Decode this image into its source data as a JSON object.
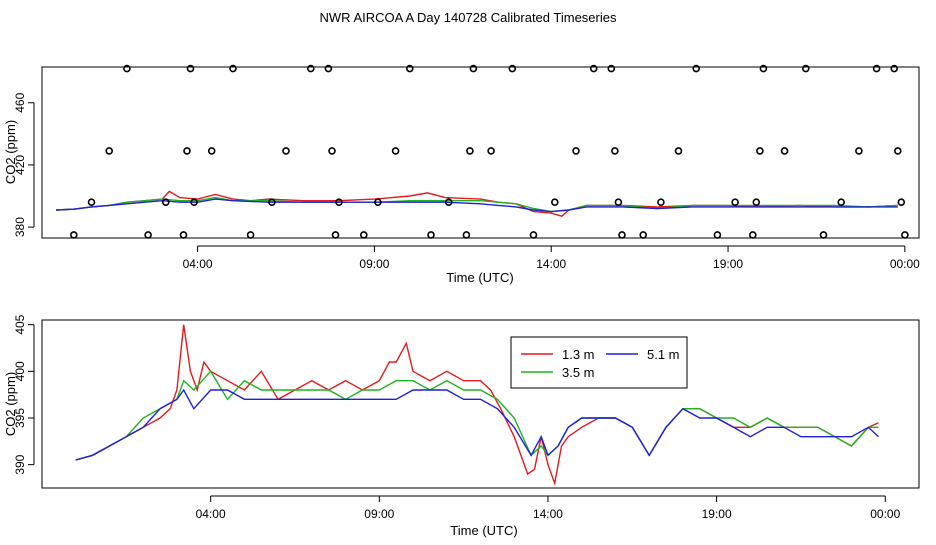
{
  "title": "NWR AIRCOA A  Day 140728  Calibrated Timeseries",
  "colors": {
    "red": "#e41a1c",
    "green": "#1fb41f",
    "blue": "#1f1fe0"
  },
  "chart_data": [
    {
      "type": "scatter",
      "title": "",
      "xlabel": "Time (UTC)",
      "ylabel": "CO2 (ppm)",
      "x_ticks": [
        "04:00",
        "09:00",
        "14:00",
        "19:00",
        "00:00"
      ],
      "x_tick_hours": [
        4,
        9,
        14,
        19,
        24
      ],
      "y_ticks": [
        380,
        420,
        460
      ],
      "xlim": [
        -0.4,
        24.4
      ],
      "ylim": [
        373,
        483
      ],
      "lines": [
        {
          "color": "red",
          "x": [
            0,
            0.5,
            1,
            1.5,
            2,
            2.5,
            3,
            3.2,
            3.5,
            4,
            4.5,
            5,
            5.5,
            6,
            7,
            8,
            9,
            9.5,
            10,
            10.5,
            11,
            12,
            12.5,
            13,
            13.5,
            14,
            14.3,
            14.5,
            15,
            16,
            17,
            18,
            19,
            20,
            21,
            22,
            23,
            23.8
          ],
          "y": [
            391,
            391.5,
            393,
            394,
            396,
            397,
            398,
            403,
            399,
            398,
            401,
            398,
            397,
            398,
            397,
            397,
            398,
            399,
            400,
            402,
            399,
            398,
            396,
            395,
            390,
            389,
            387,
            391,
            394,
            394,
            393,
            394,
            394,
            393,
            394,
            393,
            393,
            394
          ]
        },
        {
          "color": "green",
          "x": [
            0,
            0.5,
            1,
            1.5,
            2,
            2.5,
            3,
            3.5,
            4,
            4.5,
            5,
            6,
            7,
            8,
            9,
            10,
            11,
            12,
            12.5,
            13,
            13.5,
            14,
            14.5,
            15,
            16,
            17,
            18,
            19,
            20,
            21,
            22,
            23,
            23.8
          ],
          "y": [
            391,
            391.5,
            393,
            394,
            396,
            397,
            398,
            397,
            397,
            399,
            397,
            397,
            396,
            396,
            396,
            397,
            397,
            397,
            396,
            395,
            392,
            390,
            391,
            394,
            394,
            392,
            394,
            394,
            394,
            394,
            394,
            393,
            394
          ]
        },
        {
          "color": "blue",
          "x": [
            0,
            0.5,
            1,
            1.5,
            2,
            2.5,
            3,
            3.5,
            4,
            4.5,
            5,
            6,
            7,
            8,
            9,
            10,
            11,
            12,
            12.5,
            13,
            13.5,
            14,
            14.5,
            15,
            16,
            17,
            18,
            19,
            20,
            21,
            22,
            23,
            23.8
          ],
          "y": [
            391,
            391.5,
            393,
            394,
            395,
            396,
            397,
            396,
            396,
            398,
            397,
            396,
            396,
            396,
            396,
            396,
            396,
            395,
            394,
            393,
            391,
            390,
            391,
            393,
            393,
            392,
            393,
            393,
            393,
            393,
            393,
            393,
            393
          ]
        }
      ],
      "points": [
        {
          "x": 0.5,
          "y": 375
        },
        {
          "x": 1.0,
          "y": 396
        },
        {
          "x": 1.5,
          "y": 429
        },
        {
          "x": 2.0,
          "y": 482
        },
        {
          "x": 2.6,
          "y": 375
        },
        {
          "x": 3.1,
          "y": 396
        },
        {
          "x": 3.6,
          "y": 375
        },
        {
          "x": 3.7,
          "y": 429
        },
        {
          "x": 3.8,
          "y": 482
        },
        {
          "x": 3.9,
          "y": 396
        },
        {
          "x": 4.4,
          "y": 429
        },
        {
          "x": 5.0,
          "y": 482
        },
        {
          "x": 5.5,
          "y": 375
        },
        {
          "x": 6.1,
          "y": 396
        },
        {
          "x": 6.5,
          "y": 429
        },
        {
          "x": 7.2,
          "y": 482
        },
        {
          "x": 7.7,
          "y": 482
        },
        {
          "x": 7.8,
          "y": 429
        },
        {
          "x": 7.9,
          "y": 375
        },
        {
          "x": 8.0,
          "y": 396
        },
        {
          "x": 8.7,
          "y": 375
        },
        {
          "x": 9.1,
          "y": 396
        },
        {
          "x": 9.6,
          "y": 429
        },
        {
          "x": 10.0,
          "y": 482
        },
        {
          "x": 10.6,
          "y": 375
        },
        {
          "x": 11.1,
          "y": 396
        },
        {
          "x": 11.6,
          "y": 375
        },
        {
          "x": 11.7,
          "y": 429
        },
        {
          "x": 11.8,
          "y": 482
        },
        {
          "x": 12.3,
          "y": 429
        },
        {
          "x": 12.9,
          "y": 482
        },
        {
          "x": 13.5,
          "y": 375
        },
        {
          "x": 14.1,
          "y": 396
        },
        {
          "x": 14.7,
          "y": 429
        },
        {
          "x": 15.2,
          "y": 482
        },
        {
          "x": 15.7,
          "y": 482
        },
        {
          "x": 15.8,
          "y": 429
        },
        {
          "x": 15.9,
          "y": 396
        },
        {
          "x": 16.0,
          "y": 375
        },
        {
          "x": 16.6,
          "y": 375
        },
        {
          "x": 17.1,
          "y": 396
        },
        {
          "x": 17.6,
          "y": 429
        },
        {
          "x": 18.1,
          "y": 482
        },
        {
          "x": 18.7,
          "y": 375
        },
        {
          "x": 19.2,
          "y": 396
        },
        {
          "x": 19.7,
          "y": 375
        },
        {
          "x": 19.8,
          "y": 396
        },
        {
          "x": 19.9,
          "y": 429
        },
        {
          "x": 20.0,
          "y": 482
        },
        {
          "x": 20.6,
          "y": 429
        },
        {
          "x": 21.2,
          "y": 482
        },
        {
          "x": 21.7,
          "y": 375
        },
        {
          "x": 22.2,
          "y": 396
        },
        {
          "x": 22.7,
          "y": 429
        },
        {
          "x": 23.2,
          "y": 482
        },
        {
          "x": 23.7,
          "y": 482
        },
        {
          "x": 23.8,
          "y": 429
        },
        {
          "x": 23.9,
          "y": 396
        },
        {
          "x": 24.0,
          "y": 375
        }
      ]
    },
    {
      "type": "line",
      "title": "",
      "xlabel": "Time (UTC)",
      "ylabel": "CO2 (ppm)",
      "x_ticks": [
        "04:00",
        "09:00",
        "14:00",
        "19:00",
        "00:00"
      ],
      "x_tick_hours": [
        4,
        9,
        14,
        19,
        24
      ],
      "y_ticks": [
        390,
        395,
        400,
        405
      ],
      "xlim": [
        -1,
        25
      ],
      "ylim": [
        387.5,
        405.5
      ],
      "legend_position": "top-center",
      "series": [
        {
          "name": "1.3 m",
          "color": "red",
          "x": [
            0,
            0.5,
            1,
            1.5,
            2,
            2.5,
            2.8,
            3,
            3.2,
            3.4,
            3.6,
            3.8,
            4,
            4.5,
            5,
            5.5,
            6,
            6.5,
            7,
            7.5,
            8,
            8.5,
            9,
            9.3,
            9.5,
            9.8,
            10,
            10.5,
            11,
            11.5,
            12,
            12.3,
            12.6,
            13,
            13.4,
            13.6,
            13.8,
            14,
            14.2,
            14.4,
            14.6,
            15,
            15.5,
            16,
            16.5,
            17,
            17.5,
            18,
            18.5,
            19,
            19.5,
            20,
            20.5,
            21,
            21.5,
            22,
            22.5,
            23,
            23.5,
            23.8
          ],
          "y": [
            390.5,
            391,
            392,
            393,
            394,
            395,
            396,
            398,
            405,
            400,
            398,
            401,
            400,
            399,
            398,
            400,
            397,
            398,
            399,
            398,
            399,
            398,
            399,
            401,
            401,
            403,
            400,
            399,
            400,
            399,
            399,
            398,
            396,
            393,
            389,
            389.5,
            393,
            390,
            388,
            392,
            393,
            394,
            395,
            395,
            394,
            391,
            394,
            396,
            396,
            395,
            394,
            394,
            395,
            394,
            394,
            394,
            393,
            392,
            394,
            394.5
          ]
        },
        {
          "name": "3.5 m",
          "color": "green",
          "x": [
            0,
            0.5,
            1,
            1.5,
            2,
            2.5,
            3,
            3.2,
            3.5,
            4,
            4.5,
            5,
            5.5,
            6,
            6.5,
            7,
            7.5,
            8,
            8.5,
            9,
            9.5,
            10,
            10.5,
            11,
            11.5,
            12,
            12.5,
            13,
            13.5,
            13.8,
            14,
            14.3,
            14.6,
            15,
            15.5,
            16,
            16.5,
            17,
            17.5,
            18,
            18.5,
            19,
            19.5,
            20,
            20.5,
            21,
            21.5,
            22,
            22.5,
            23,
            23.5,
            23.8
          ],
          "y": [
            390.5,
            391,
            392,
            393,
            395,
            396,
            397,
            399,
            398,
            400,
            397,
            399,
            398,
            398,
            398,
            398,
            398,
            397,
            398,
            398,
            399,
            399,
            398,
            399,
            398,
            398,
            397,
            395,
            391,
            392,
            391,
            392,
            394,
            395,
            395,
            395,
            394,
            391,
            394,
            396,
            396,
            395,
            395,
            394,
            395,
            394,
            394,
            394,
            393,
            392,
            394,
            394
          ]
        },
        {
          "name": "5.1 m",
          "color": "blue",
          "x": [
            0,
            0.5,
            1,
            1.5,
            2,
            2.5,
            3,
            3.2,
            3.5,
            4,
            4.5,
            5,
            5.5,
            6,
            6.5,
            7,
            7.5,
            8,
            8.5,
            9,
            9.5,
            10,
            10.5,
            11,
            11.5,
            12,
            12.5,
            13,
            13.5,
            13.8,
            14,
            14.3,
            14.6,
            15,
            15.5,
            16,
            16.5,
            17,
            17.5,
            18,
            18.5,
            19,
            19.5,
            20,
            20.5,
            21,
            21.5,
            22,
            22.5,
            23,
            23.5,
            23.8
          ],
          "y": [
            390.5,
            391,
            392,
            393,
            394,
            396,
            397,
            398,
            396,
            398,
            398,
            397,
            397,
            397,
            397,
            397,
            397,
            397,
            397,
            397,
            397,
            398,
            398,
            398,
            397,
            397,
            396,
            394,
            391,
            393,
            391,
            392,
            394,
            395,
            395,
            395,
            394,
            391,
            394,
            396,
            395,
            395,
            394,
            393,
            394,
            394,
            393,
            393,
            393,
            393,
            394,
            393
          ]
        }
      ]
    }
  ]
}
